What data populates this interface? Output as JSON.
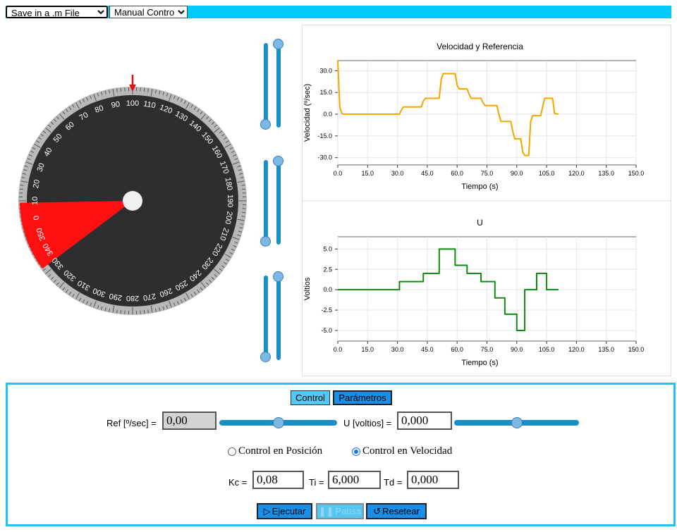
{
  "toolbar": {
    "save_select": "Save in a .m File",
    "mode_select": "Manual Control"
  },
  "dial": {
    "tick_labels": [
      "100",
      "110",
      "120",
      "130",
      "140",
      "150",
      "160",
      "170",
      "180",
      "190",
      "200",
      "210",
      "220",
      "230",
      "240",
      "250",
      "260",
      "270",
      "280",
      "290",
      "300",
      "310",
      "320",
      "330",
      "340",
      "350",
      "0",
      "10",
      "20",
      "30",
      "40",
      "50",
      "60",
      "70",
      "80",
      "90"
    ],
    "colors": {
      "face": "#2e2d30",
      "sector": "#ff1010",
      "pointer": "#e01010",
      "rim": "#b8b8b8"
    }
  },
  "sliders": {
    "count": 3
  },
  "chart_data": [
    {
      "type": "line",
      "title": "Velocidad y Referencia",
      "xlabel": "Tiempo (s)",
      "ylabel": "Velocidad (º/sec)",
      "xlim": [
        0,
        150
      ],
      "ylim": [
        -35,
        37
      ],
      "xticks": [
        "0.0",
        "15.0",
        "30.0",
        "45.0",
        "60.0",
        "75.0",
        "90.0",
        "105.0",
        "120.0",
        "135.0",
        "150.0"
      ],
      "yticks": [
        "30.0",
        "15.0",
        "0.0",
        "-15.0",
        "-30.0"
      ],
      "grid": true,
      "series": [
        {
          "color": "#f5a500",
          "x": [
            0,
            0.5,
            1,
            2,
            3,
            5,
            31,
            32,
            33,
            42,
            43,
            44,
            51,
            52,
            53,
            59,
            60,
            61,
            65,
            66,
            67,
            72,
            73,
            74,
            80,
            81,
            82,
            87,
            88,
            89,
            92,
            93,
            94,
            96,
            97,
            98,
            102,
            103,
            104,
            108,
            109,
            111
          ],
          "y": [
            37,
            20,
            5,
            0.5,
            0,
            0,
            0,
            3,
            5,
            5,
            9,
            11,
            11,
            24,
            28,
            28,
            20,
            17.5,
            17.5,
            14,
            11,
            11,
            8,
            6,
            6,
            0,
            -5,
            -5,
            -12,
            -17,
            -17,
            -26,
            -28.5,
            -28.5,
            -5,
            -1,
            -1,
            5,
            11,
            11,
            0.5,
            0
          ]
        }
      ]
    },
    {
      "type": "line",
      "title": "U",
      "xlabel": "Tiempo (s)",
      "ylabel": "Voltios",
      "xlim": [
        0,
        150
      ],
      "ylim": [
        -6.3,
        6.5
      ],
      "xticks": [
        "0.0",
        "15.0",
        "30.0",
        "45.0",
        "60.0",
        "75.0",
        "90.0",
        "105.0",
        "120.0",
        "135.0",
        "150.0"
      ],
      "yticks": [
        "5.0",
        "2.5",
        "0.0",
        "-2.5",
        "-5.0"
      ],
      "grid": true,
      "series": [
        {
          "color": "#118a11",
          "x": [
            0,
            31,
            31,
            43,
            43,
            51,
            51,
            59,
            59,
            65,
            65,
            72,
            72,
            79,
            79,
            84,
            84,
            90,
            90,
            94,
            94,
            100,
            100,
            105,
            105,
            111
          ],
          "y": [
            0,
            0,
            1,
            1,
            2,
            2,
            5,
            5,
            3,
            3,
            2,
            2,
            1,
            1,
            -1,
            -1,
            -3,
            -3,
            -5,
            -5,
            0,
            0,
            2,
            2,
            0,
            0
          ]
        }
      ]
    }
  ],
  "control": {
    "tab_control": "Control",
    "tab_params": "Parámetros",
    "ref_label": "Ref [º/sec] =",
    "ref_value": "0,00",
    "u_label": "U [voltios] =",
    "u_value": "0,000",
    "ref_slider_fraction": 0.5,
    "u_slider_fraction": 0.5,
    "radio_position": "Control en Posición",
    "radio_velocity": "Control en Velocidad",
    "selected_mode": "velocity",
    "kc_label": "Kc =",
    "kc_value": "0,08",
    "ti_label": "Ti =",
    "ti_value": "6,000",
    "td_label": "Td =",
    "td_value": "0,000",
    "run_label": "Ejecutar",
    "pause_label": "Pausa",
    "reset_label": "Resetear"
  }
}
